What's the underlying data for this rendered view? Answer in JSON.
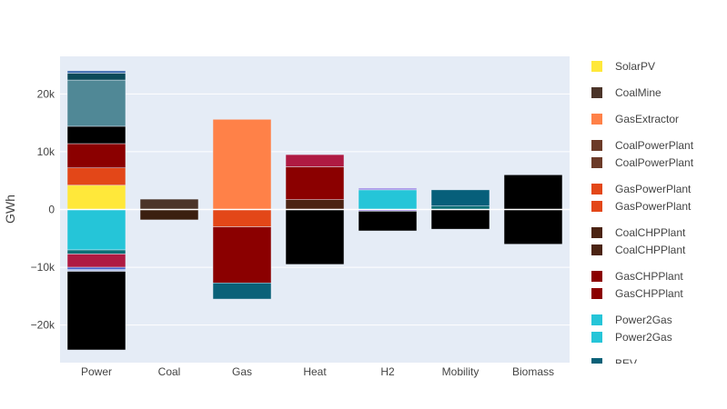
{
  "chart_data": {
    "type": "bar",
    "barmode": "relative",
    "categories": [
      "Power",
      "Coal",
      "Gas",
      "Heat",
      "H2",
      "Mobility",
      "Biomass"
    ],
    "ylabel": "GWh",
    "ylim": [
      -26500,
      26500
    ],
    "yticks": [
      {
        "value": 20000,
        "label": "20k"
      },
      {
        "value": 10000,
        "label": "10k"
      },
      {
        "value": 0,
        "label": "0"
      },
      {
        "value": -10000,
        "label": "−10k"
      },
      {
        "value": -20000,
        "label": "−20k"
      }
    ],
    "grid": true,
    "legend_position": "right",
    "background": "#e5ecf6",
    "stacks": [
      {
        "category": "Power",
        "segments": [
          {
            "value": 4200,
            "color": "#ffe83a"
          },
          {
            "value": 3000,
            "color": "#e34718"
          },
          {
            "value": 4200,
            "color": "#8b0000"
          },
          {
            "value": 3000,
            "color": "#000000"
          },
          {
            "value": 8000,
            "color": "#508896"
          },
          {
            "value": 1200,
            "color": "#0b4a5a"
          },
          {
            "value": 400,
            "color": "#3b6ab0"
          },
          {
            "value": -7000,
            "color": "#25c5d8"
          },
          {
            "value": -700,
            "color": "#0a6f76"
          },
          {
            "value": -2300,
            "color": "#af1a42"
          },
          {
            "value": -400,
            "color": "#4a5fc8"
          },
          {
            "value": -300,
            "color": "#b9c8ee"
          },
          {
            "value": -13600,
            "color": "#000000"
          }
        ]
      },
      {
        "category": "Coal",
        "segments": [
          {
            "value": 1800,
            "color": "#4b3429"
          },
          {
            "value": -1800,
            "color": "#3b1f10"
          }
        ]
      },
      {
        "category": "Gas",
        "segments": [
          {
            "value": 15600,
            "color": "#ff8148"
          },
          {
            "value": -3000,
            "color": "#e34718"
          },
          {
            "value": -9700,
            "color": "#8b0000"
          },
          {
            "value": -2800,
            "color": "#0a6178"
          }
        ]
      },
      {
        "category": "Heat",
        "segments": [
          {
            "value": 1700,
            "color": "#4b2312"
          },
          {
            "value": 5700,
            "color": "#8b0000"
          },
          {
            "value": 2100,
            "color": "#af1a42"
          },
          {
            "value": -9500,
            "color": "#000000"
          }
        ]
      },
      {
        "category": "H2",
        "segments": [
          {
            "value": 3400,
            "color": "#25c5d8"
          },
          {
            "value": 300,
            "color": "#9b85e6"
          },
          {
            "value": -300,
            "color": "#9b85e6"
          },
          {
            "value": -3400,
            "color": "#000000"
          }
        ]
      },
      {
        "category": "Mobility",
        "segments": [
          {
            "value": 600,
            "color": "#0a6f76"
          },
          {
            "value": 2800,
            "color": "#075f7a"
          },
          {
            "value": -3400,
            "color": "#000000"
          }
        ]
      },
      {
        "category": "Biomass",
        "segments": [
          {
            "value": 6000,
            "color": "#000000"
          },
          {
            "value": -6000,
            "color": "#000000"
          }
        ]
      }
    ],
    "legend": [
      {
        "label": "SolarPV",
        "color": "#ffe83a"
      },
      {
        "label": "CoalMine",
        "color": "#4b3429"
      },
      {
        "label": "GasExtractor",
        "color": "#ff8148"
      },
      {
        "label": "CoalPowerPlant",
        "color": "#6b3a28"
      },
      {
        "label": "CoalPowerPlant",
        "color": "#6b3a28"
      },
      {
        "label": "GasPowerPlant",
        "color": "#e34718"
      },
      {
        "label": "GasPowerPlant",
        "color": "#e34718"
      },
      {
        "label": "CoalCHPPlant",
        "color": "#4b2312"
      },
      {
        "label": "CoalCHPPlant",
        "color": "#4b2312"
      },
      {
        "label": "GasCHPPlant",
        "color": "#8b0000"
      },
      {
        "label": "GasCHPPlant",
        "color": "#8b0000"
      },
      {
        "label": "Power2Gas",
        "color": "#25c5d8"
      },
      {
        "label": "Power2Gas",
        "color": "#25c5d8"
      },
      {
        "label": "BEV",
        "color": "#0a6178"
      }
    ]
  }
}
